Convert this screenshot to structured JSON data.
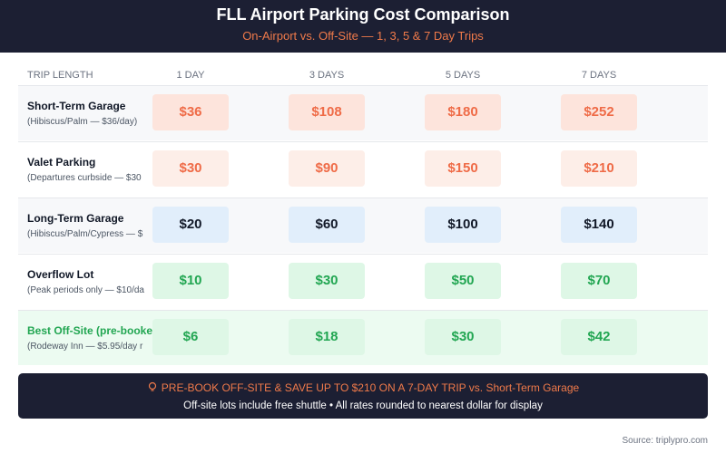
{
  "header": {
    "title": "FLL Airport Parking Cost Comparison",
    "subtitle": "On-Airport vs. Off-Site — 1, 3, 5 & 7 Day Trips"
  },
  "table": {
    "columns": [
      "TRIP LENGTH",
      "1 DAY",
      "3 DAYS",
      "5 DAYS",
      "7 DAYS"
    ],
    "rows": [
      {
        "name": "Short-Term Garage",
        "detail": "(Hibiscus/Palm — $36/day)",
        "cells": [
          "$36",
          "$108",
          "$180",
          "$252"
        ]
      },
      {
        "name": "Valet Parking",
        "detail": "(Departures curbside — $30",
        "cells": [
          "$30",
          "$90",
          "$150",
          "$210"
        ]
      },
      {
        "name": "Long-Term Garage",
        "detail": "(Hibiscus/Palm/Cypress — $",
        "cells": [
          "$20",
          "$60",
          "$100",
          "$140"
        ]
      },
      {
        "name": "Overflow Lot",
        "detail": "(Peak periods only — $10/da",
        "cells": [
          "$10",
          "$30",
          "$50",
          "$70"
        ]
      },
      {
        "name": "Best Off-Site (pre-booke",
        "detail": "(Rodeway Inn — $5.95/day r",
        "cells": [
          "$6",
          "$18",
          "$30",
          "$42"
        ]
      }
    ]
  },
  "callout": {
    "headline": "PRE-BOOK OFF-SITE & SAVE UP TO $210 ON A 7-DAY TRIP vs. Short-Term Garage",
    "note": "Off-site lots include free shuttle • All rates rounded to nearest dollar for display"
  },
  "source": "Source: triplypro.com"
}
